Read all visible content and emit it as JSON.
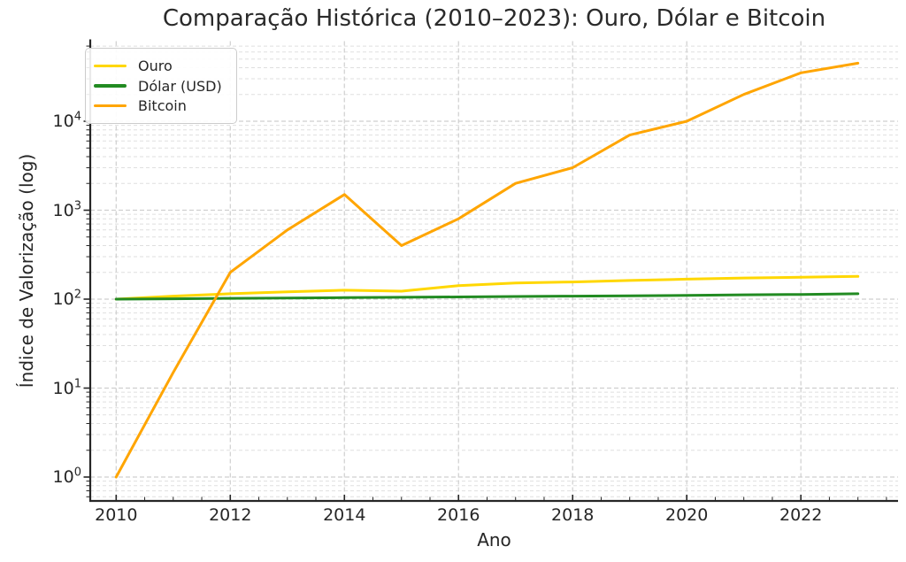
{
  "figure": {
    "background": "#ffffff"
  },
  "chart_data": {
    "type": "line",
    "title": "Comparação Histórica (2010–2023): Ouro, Dólar e Bitcoin",
    "xlabel": "Ano",
    "ylabel": "Índice de Valorização (log)",
    "x": [
      2010,
      2011,
      2012,
      2013,
      2014,
      2015,
      2016,
      2017,
      2018,
      2019,
      2020,
      2021,
      2022,
      2023
    ],
    "series": [
      {
        "name": "Ouro",
        "color": "#FFD700",
        "values": [
          100,
          108,
          115,
          121,
          126,
          123,
          142,
          152,
          156,
          162,
          168,
          173,
          176,
          180
        ]
      },
      {
        "name": "Dólar (USD)",
        "color": "#228B22",
        "values": [
          100,
          101,
          102,
          103,
          104,
          105,
          106,
          107,
          108,
          109,
          110,
          112,
          113,
          115
        ]
      },
      {
        "name": "Bitcoin",
        "color": "#FFA500",
        "values": [
          1,
          15,
          200,
          600,
          1500,
          400,
          800,
          2000,
          3000,
          7000,
          10000,
          20000,
          35000,
          45000
        ]
      }
    ],
    "y_scale": "log",
    "ylim": [
      0.55,
      77000
    ],
    "xlim": [
      2009.55,
      2023.7
    ],
    "x_ticks": [
      2010,
      2012,
      2014,
      2016,
      2018,
      2020,
      2022
    ],
    "x_minor_tick_step": 0.5,
    "y_tick_exponents": [
      0,
      1,
      2,
      3,
      4
    ],
    "y_tick_base": "10",
    "grid": "both, dashed",
    "legend_position": "upper-left",
    "colors": {
      "grid_major": "#cfcfcf",
      "grid_minor": "#dfdfdf",
      "spine": "#262626",
      "text": "#262626"
    }
  }
}
